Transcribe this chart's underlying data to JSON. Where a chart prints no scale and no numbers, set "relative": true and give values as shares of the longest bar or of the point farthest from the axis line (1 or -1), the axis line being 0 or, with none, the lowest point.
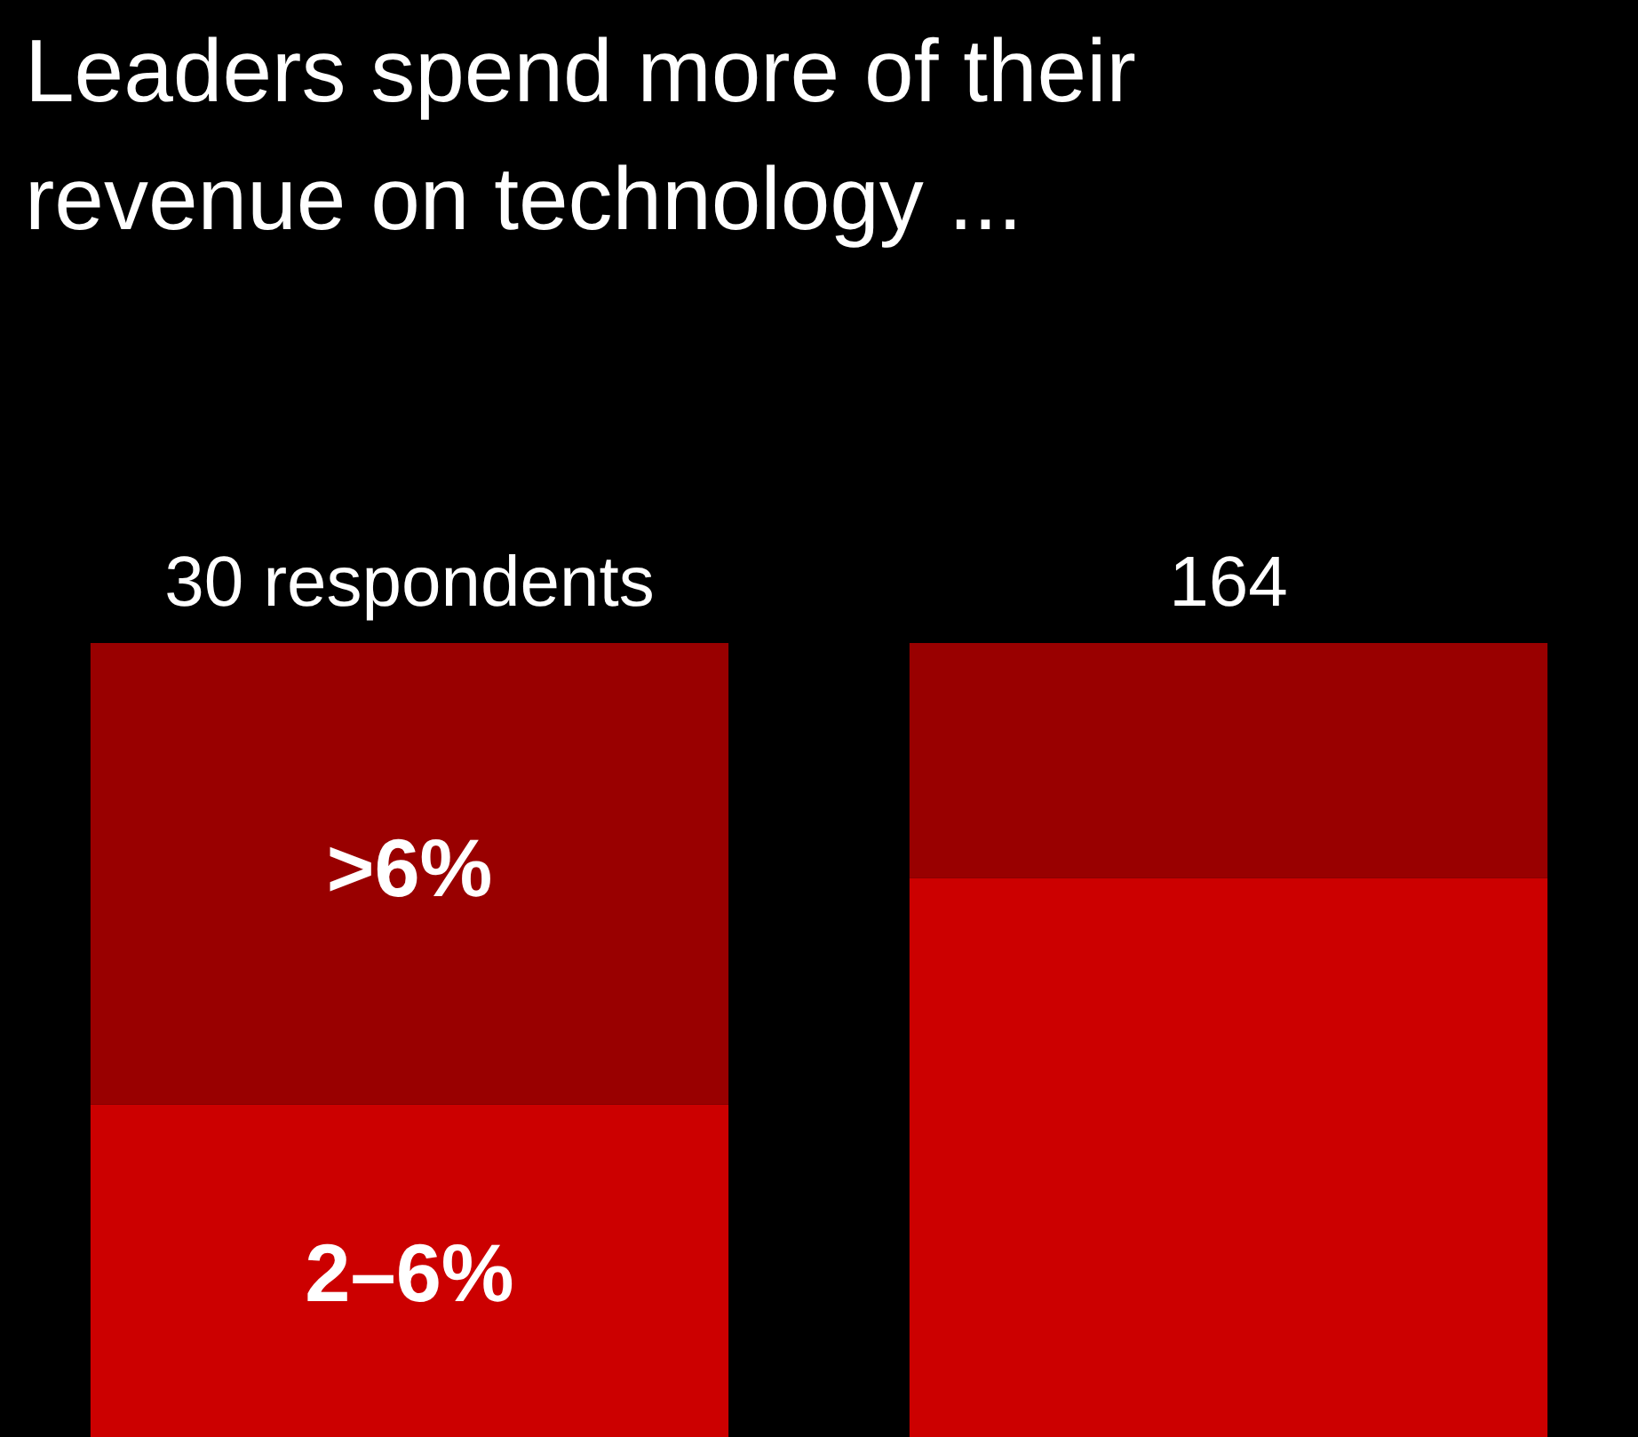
{
  "chart_data": {
    "type": "bar",
    "title": "Leaders spend more of their revenue on technology ...",
    "categories": [
      "30 respondents",
      "164"
    ],
    "stacked": true,
    "relative": true,
    "legend": false,
    "series": [
      {
        "name": "2–6%",
        "color": "#cc0000",
        "values": [
          0.43,
          0.71
        ]
      },
      {
        "name": ">6%",
        "color": "#990000",
        "values": [
          0.57,
          0.29
        ]
      }
    ]
  }
}
